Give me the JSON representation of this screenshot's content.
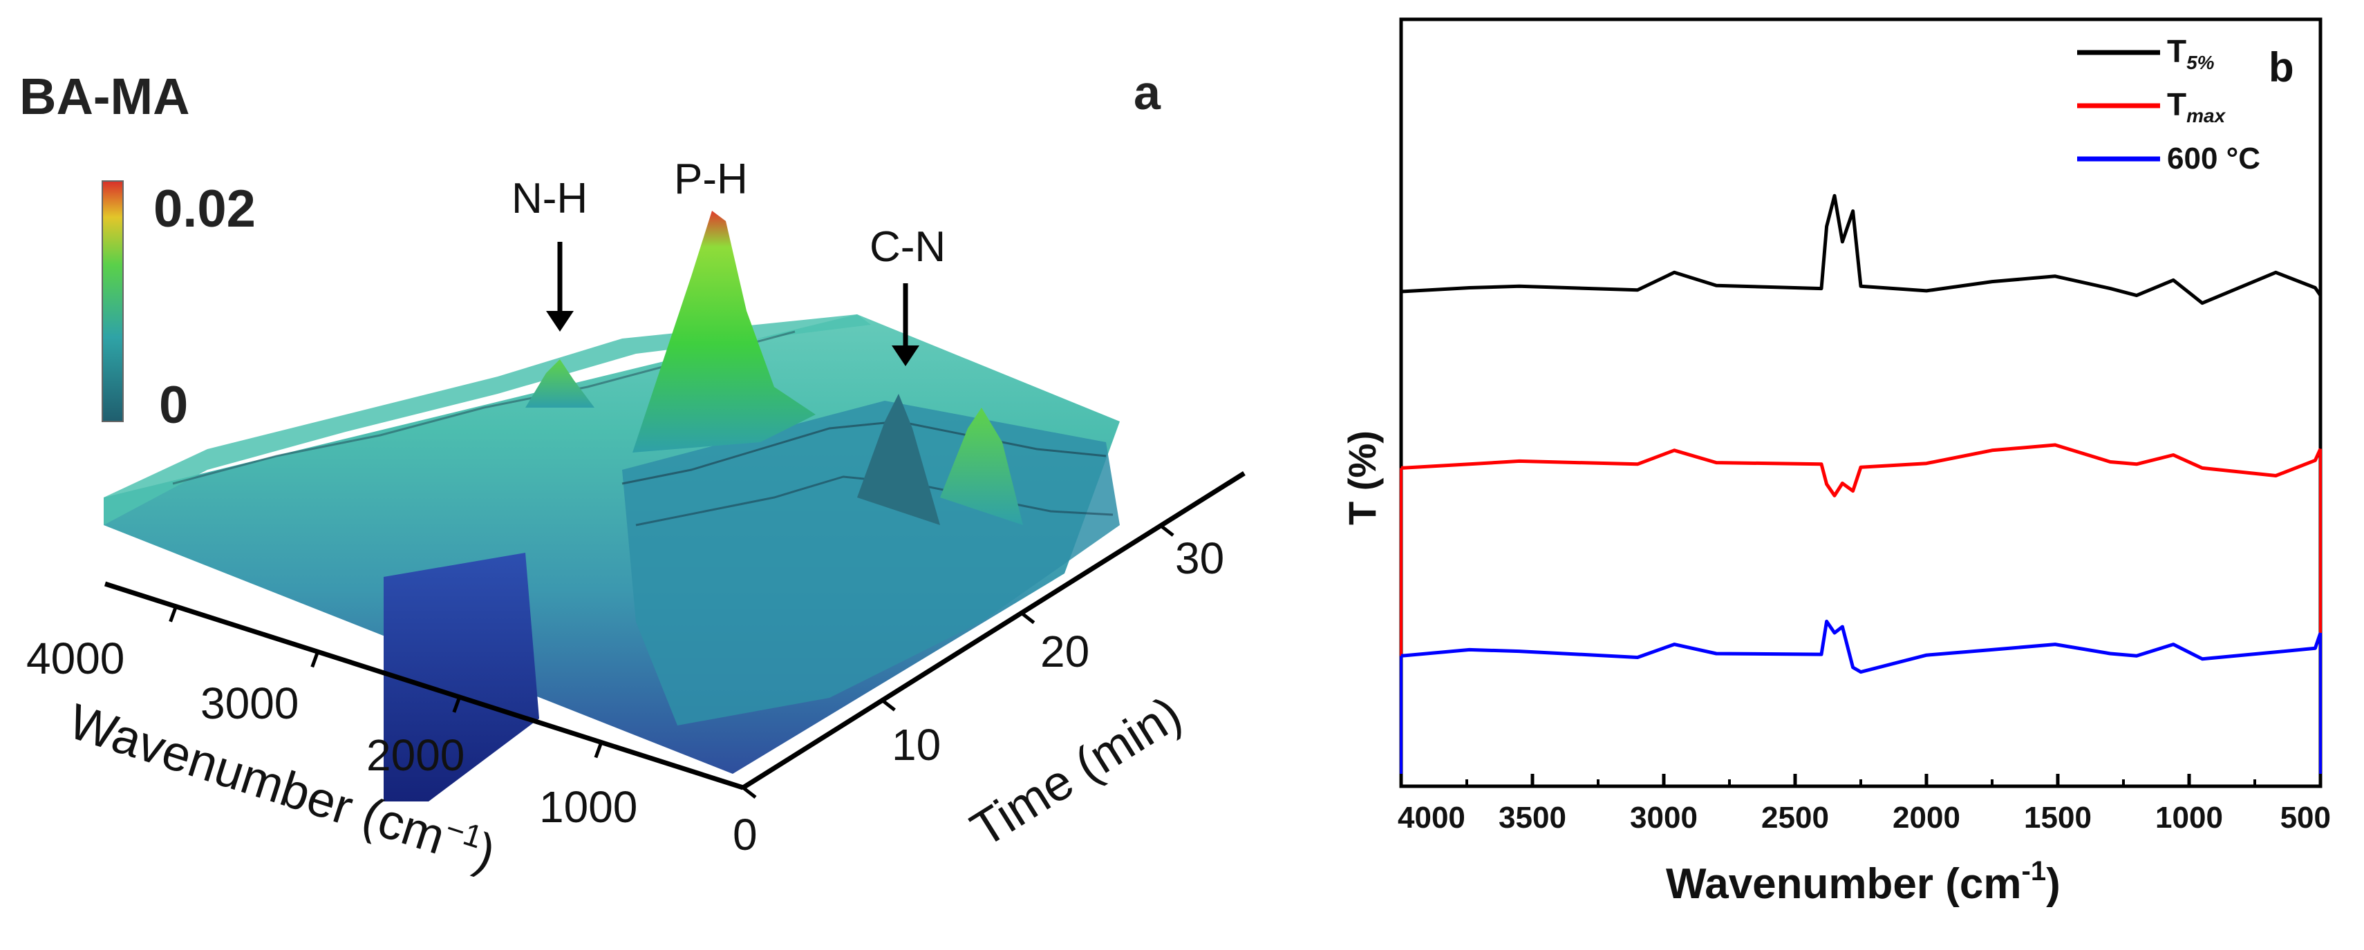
{
  "panel_a": {
    "title": "BA-MA",
    "panel_letter": "a",
    "colorbar": {
      "max_label": "0.02",
      "min_label": "0"
    },
    "annotations": {
      "nh": "N-H",
      "ph": "P-H",
      "cn": "C-N"
    },
    "wavenumber_axis": {
      "label": "Wavenumber (cm",
      "label_sup": "−1",
      "label_close": ")",
      "ticks": [
        "4000",
        "3000",
        "2000",
        "1000"
      ]
    },
    "time_axis": {
      "label": "Time (min)",
      "ticks": [
        "0",
        "10",
        "20",
        "30"
      ]
    },
    "colors": {
      "low": "#1a2f8a",
      "mid": "#3aa7b0",
      "high_green": "#3fcf3f",
      "peak": "#e03c2c"
    }
  },
  "panel_b": {
    "panel_letter": "b",
    "ylabel": "T (%)",
    "xlabel": "Wavenumber (cm",
    "xlabel_sup": "-1",
    "xlabel_close": ")",
    "xticks": [
      "4000",
      "3500",
      "3000",
      "2500",
      "2000",
      "1500",
      "1000",
      "500"
    ],
    "legend": [
      {
        "main": "T",
        "sub": "5%",
        "color": "#000000"
      },
      {
        "main": "T",
        "sub": "max",
        "color": "#ff0000"
      },
      {
        "main": "600 °C",
        "sub": "",
        "color": "#0000ff"
      }
    ]
  },
  "chart_data": [
    {
      "type": "line",
      "title": "",
      "xlabel": "Wavenumber (cm-1)",
      "ylabel": "T (%)",
      "xlim": [
        4000,
        500
      ],
      "ylim": [
        0,
        100
      ],
      "x": [
        4000,
        3740,
        3550,
        3100,
        2960,
        2800,
        2400,
        2380,
        2350,
        2320,
        2280,
        2250,
        2000,
        1750,
        1510,
        1300,
        1200,
        1060,
        950,
        670,
        520,
        500
      ],
      "series": [
        {
          "name": "T5%",
          "color": "#000000",
          "values": [
            64.5,
            65.0,
            65.2,
            64.7,
            67.0,
            65.3,
            64.9,
            73.0,
            77.0,
            71.0,
            75.0,
            65.2,
            64.6,
            65.8,
            66.5,
            64.9,
            64.0,
            66.0,
            63.0,
            67.0,
            65.0,
            64.0
          ]
        },
        {
          "name": "Tmax",
          "color": "#ff0000",
          "values": [
            41.5,
            42.0,
            42.4,
            42.0,
            43.8,
            42.2,
            42.0,
            39.4,
            37.9,
            39.5,
            38.5,
            41.6,
            42.1,
            43.8,
            44.5,
            42.3,
            42.0,
            43.2,
            41.5,
            40.5,
            42.5,
            44.0
          ]
        },
        {
          "name": "600 °C",
          "color": "#0000ff",
          "values": [
            17.0,
            17.8,
            17.6,
            16.8,
            18.5,
            17.3,
            17.2,
            21.5,
            20.0,
            20.8,
            15.5,
            14.9,
            17.1,
            17.8,
            18.5,
            17.3,
            17.0,
            18.5,
            16.6,
            17.5,
            18.0,
            20.0
          ]
        }
      ]
    }
  ]
}
